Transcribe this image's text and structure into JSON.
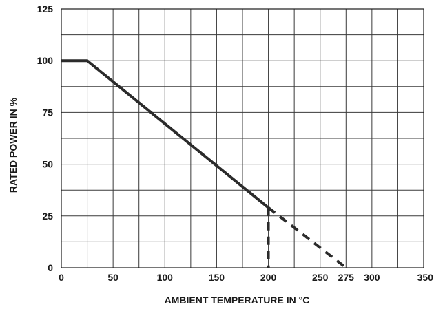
{
  "chart_data": {
    "type": "line",
    "title": "",
    "xlabel": "AMBIENT TEMPERATURE IN °C",
    "ylabel": "RATED POWER IN %",
    "xlim": [
      0,
      350
    ],
    "ylim": [
      0,
      125
    ],
    "x_ticks": [
      0,
      50,
      100,
      150,
      200,
      250,
      275,
      300,
      350
    ],
    "x_tick_labels": [
      "0",
      "50",
      "100",
      "150",
      "200",
      "250",
      "275",
      "300",
      "350"
    ],
    "y_ticks": [
      0,
      25,
      50,
      75,
      100,
      125
    ],
    "y_tick_labels": [
      "0",
      "25",
      "50",
      "75",
      "100",
      "125"
    ],
    "x_grid": [
      0,
      25,
      50,
      75,
      100,
      125,
      150,
      175,
      200,
      225,
      250,
      275,
      300,
      325,
      350
    ],
    "y_grid": [
      0,
      12.5,
      25,
      37.5,
      50,
      62.5,
      75,
      87.5,
      100,
      112.5,
      125
    ],
    "grid": true,
    "series": [
      {
        "style": "solid",
        "x": [
          0,
          25,
          200
        ],
        "y": [
          100,
          100,
          29
        ]
      },
      {
        "style": "dashed",
        "x": [
          200,
          275
        ],
        "y": [
          29,
          0
        ]
      },
      {
        "style": "dashed",
        "x": [
          200,
          200
        ],
        "y": [
          29,
          0
        ]
      }
    ]
  }
}
